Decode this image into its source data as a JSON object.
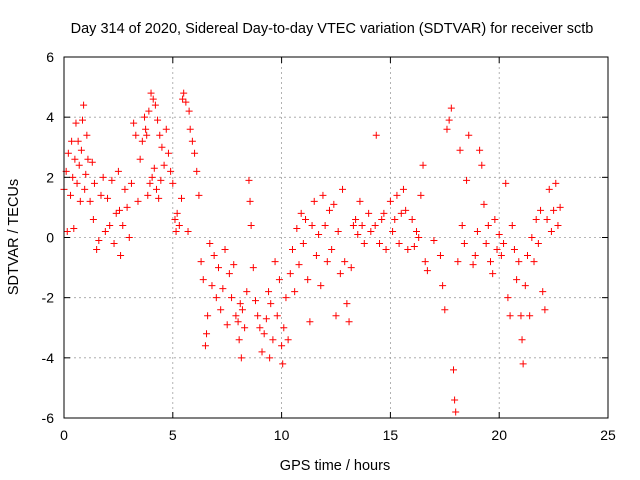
{
  "chart_data": {
    "type": "scatter",
    "title": "Day 314 of 2020, Sidereal Day-to-day VTEC variation (SDTVAR) for receiver sctb",
    "xlabel": "GPS time / hours",
    "ylabel": "SDTVAR / TECUs",
    "xlim": [
      0,
      25
    ],
    "ylim": [
      -6,
      6
    ],
    "xticks": [
      0,
      5,
      10,
      15,
      20,
      25
    ],
    "yticks": [
      -6,
      -4,
      -2,
      0,
      2,
      4,
      6
    ],
    "grid": true,
    "marker": "+",
    "color": "#ff0000",
    "series": [
      {
        "name": "SDTVAR",
        "points": [
          [
            0.0,
            1.6
          ],
          [
            0.1,
            2.2
          ],
          [
            0.15,
            0.2
          ],
          [
            0.2,
            2.8
          ],
          [
            0.3,
            1.4
          ],
          [
            0.35,
            3.2
          ],
          [
            0.4,
            2.0
          ],
          [
            0.45,
            0.3
          ],
          [
            0.5,
            2.6
          ],
          [
            0.55,
            3.8
          ],
          [
            0.6,
            1.8
          ],
          [
            0.65,
            3.2
          ],
          [
            0.7,
            2.4
          ],
          [
            0.75,
            1.2
          ],
          [
            0.8,
            2.9
          ],
          [
            0.85,
            3.9
          ],
          [
            0.9,
            4.4
          ],
          [
            0.95,
            1.6
          ],
          [
            1.0,
            2.1
          ],
          [
            1.05,
            3.4
          ],
          [
            1.1,
            2.6
          ],
          [
            1.2,
            1.2
          ],
          [
            1.3,
            2.5
          ],
          [
            1.35,
            0.6
          ],
          [
            1.4,
            1.8
          ],
          [
            1.5,
            -0.4
          ],
          [
            1.6,
            -0.1
          ],
          [
            1.7,
            1.4
          ],
          [
            1.8,
            2.0
          ],
          [
            1.9,
            0.2
          ],
          [
            2.0,
            1.3
          ],
          [
            2.1,
            0.4
          ],
          [
            2.2,
            1.9
          ],
          [
            2.3,
            -0.2
          ],
          [
            2.4,
            0.8
          ],
          [
            2.5,
            2.2
          ],
          [
            2.55,
            0.9
          ],
          [
            2.6,
            -0.6
          ],
          [
            2.7,
            0.4
          ],
          [
            2.8,
            1.6
          ],
          [
            2.9,
            1.0
          ],
          [
            3.0,
            0.0
          ],
          [
            3.1,
            1.8
          ],
          [
            3.2,
            3.8
          ],
          [
            3.3,
            3.4
          ],
          [
            3.4,
            1.2
          ],
          [
            3.5,
            2.6
          ],
          [
            3.6,
            3.2
          ],
          [
            3.7,
            4.0
          ],
          [
            3.75,
            3.6
          ],
          [
            3.8,
            3.4
          ],
          [
            3.85,
            1.4
          ],
          [
            3.9,
            4.2
          ],
          [
            3.95,
            1.8
          ],
          [
            4.0,
            4.8
          ],
          [
            4.05,
            2.0
          ],
          [
            4.1,
            4.6
          ],
          [
            4.15,
            2.3
          ],
          [
            4.2,
            4.4
          ],
          [
            4.25,
            1.6
          ],
          [
            4.3,
            3.9
          ],
          [
            4.35,
            1.3
          ],
          [
            4.4,
            3.4
          ],
          [
            4.45,
            1.9
          ],
          [
            4.5,
            3.0
          ],
          [
            4.6,
            2.4
          ],
          [
            4.7,
            3.6
          ],
          [
            4.8,
            2.8
          ],
          [
            4.9,
            2.2
          ],
          [
            5.0,
            1.8
          ],
          [
            5.1,
            0.6
          ],
          [
            5.15,
            0.2
          ],
          [
            5.2,
            0.8
          ],
          [
            5.3,
            0.4
          ],
          [
            5.4,
            1.3
          ],
          [
            5.45,
            4.6
          ],
          [
            5.5,
            4.8
          ],
          [
            5.6,
            4.5
          ],
          [
            5.7,
            0.2
          ],
          [
            5.75,
            4.2
          ],
          [
            5.8,
            3.6
          ],
          [
            5.9,
            3.2
          ],
          [
            6.0,
            2.8
          ],
          [
            6.1,
            2.2
          ],
          [
            6.2,
            1.4
          ],
          [
            6.3,
            -0.8
          ],
          [
            6.4,
            -1.4
          ],
          [
            6.5,
            -3.6
          ],
          [
            6.55,
            -3.2
          ],
          [
            6.6,
            -2.6
          ],
          [
            6.7,
            -0.2
          ],
          [
            6.8,
            -1.6
          ],
          [
            6.9,
            -0.6
          ],
          [
            7.0,
            -2.0
          ],
          [
            7.1,
            -1.0
          ],
          [
            7.2,
            -2.4
          ],
          [
            7.3,
            -1.7
          ],
          [
            7.4,
            -0.4
          ],
          [
            7.5,
            -2.9
          ],
          [
            7.6,
            -1.2
          ],
          [
            7.7,
            -2.0
          ],
          [
            7.8,
            -0.9
          ],
          [
            7.9,
            -2.6
          ],
          [
            8.0,
            -2.8
          ],
          [
            8.05,
            -3.4
          ],
          [
            8.1,
            -2.2
          ],
          [
            8.15,
            -4.0
          ],
          [
            8.2,
            -2.4
          ],
          [
            8.3,
            -3.0
          ],
          [
            8.4,
            -1.8
          ],
          [
            8.5,
            1.9
          ],
          [
            8.55,
            1.2
          ],
          [
            8.6,
            0.4
          ],
          [
            8.7,
            -1.0
          ],
          [
            8.8,
            -2.1
          ],
          [
            8.9,
            -2.6
          ],
          [
            9.0,
            -3.0
          ],
          [
            9.1,
            -3.8
          ],
          [
            9.2,
            -3.2
          ],
          [
            9.3,
            -2.7
          ],
          [
            9.4,
            -1.8
          ],
          [
            9.45,
            -4.0
          ],
          [
            9.5,
            -2.2
          ],
          [
            9.6,
            -3.4
          ],
          [
            9.7,
            -0.8
          ],
          [
            9.8,
            -2.6
          ],
          [
            9.9,
            -1.4
          ],
          [
            10.0,
            -3.6
          ],
          [
            10.05,
            -4.2
          ],
          [
            10.1,
            -3.0
          ],
          [
            10.2,
            -2.0
          ],
          [
            10.3,
            -3.4
          ],
          [
            10.4,
            -1.2
          ],
          [
            10.5,
            -0.4
          ],
          [
            10.6,
            -1.8
          ],
          [
            10.7,
            0.3
          ],
          [
            10.8,
            -0.9
          ],
          [
            10.9,
            0.8
          ],
          [
            11.0,
            -0.2
          ],
          [
            11.1,
            0.6
          ],
          [
            11.2,
            -1.4
          ],
          [
            11.3,
            -2.8
          ],
          [
            11.4,
            0.4
          ],
          [
            11.5,
            1.2
          ],
          [
            11.6,
            -0.6
          ],
          [
            11.7,
            0.1
          ],
          [
            11.8,
            -1.6
          ],
          [
            11.9,
            1.4
          ],
          [
            12.0,
            0.4
          ],
          [
            12.1,
            -0.8
          ],
          [
            12.2,
            0.9
          ],
          [
            12.3,
            -0.4
          ],
          [
            12.4,
            1.1
          ],
          [
            12.5,
            -2.6
          ],
          [
            12.6,
            0.2
          ],
          [
            12.7,
            -1.2
          ],
          [
            12.8,
            1.6
          ],
          [
            12.9,
            -0.8
          ],
          [
            13.0,
            -2.2
          ],
          [
            13.1,
            -2.8
          ],
          [
            13.2,
            -1.0
          ],
          [
            13.3,
            0.4
          ],
          [
            13.4,
            0.6
          ],
          [
            13.5,
            0.1
          ],
          [
            13.6,
            1.2
          ],
          [
            13.7,
            0.4
          ],
          [
            13.8,
            -0.2
          ],
          [
            14.0,
            0.8
          ],
          [
            14.1,
            0.2
          ],
          [
            14.3,
            0.4
          ],
          [
            14.35,
            3.4
          ],
          [
            14.5,
            -0.2
          ],
          [
            14.6,
            0.6
          ],
          [
            14.7,
            0.8
          ],
          [
            14.8,
            -0.4
          ],
          [
            15.0,
            1.2
          ],
          [
            15.1,
            0.2
          ],
          [
            15.2,
            0.6
          ],
          [
            15.3,
            1.4
          ],
          [
            15.4,
            -0.2
          ],
          [
            15.5,
            0.8
          ],
          [
            15.6,
            1.6
          ],
          [
            15.7,
            0.9
          ],
          [
            15.8,
            -0.4
          ],
          [
            16.0,
            0.6
          ],
          [
            16.1,
            -0.3
          ],
          [
            16.2,
            0.2
          ],
          [
            16.3,
            0.0
          ],
          [
            16.4,
            1.4
          ],
          [
            16.5,
            2.4
          ],
          [
            16.6,
            -0.8
          ],
          [
            16.7,
            -1.1
          ],
          [
            17.0,
            -0.1
          ],
          [
            17.3,
            -0.6
          ],
          [
            17.4,
            -1.6
          ],
          [
            17.5,
            -2.4
          ],
          [
            17.6,
            3.6
          ],
          [
            17.7,
            3.9
          ],
          [
            17.8,
            4.3
          ],
          [
            17.9,
            -4.4
          ],
          [
            17.95,
            -5.4
          ],
          [
            18.0,
            -5.8
          ],
          [
            18.1,
            -0.8
          ],
          [
            18.2,
            2.9
          ],
          [
            18.3,
            0.4
          ],
          [
            18.4,
            -0.2
          ],
          [
            18.5,
            1.9
          ],
          [
            18.6,
            3.4
          ],
          [
            18.8,
            -0.9
          ],
          [
            18.9,
            -0.6
          ],
          [
            19.0,
            0.2
          ],
          [
            19.1,
            2.9
          ],
          [
            19.2,
            2.4
          ],
          [
            19.3,
            1.1
          ],
          [
            19.4,
            -0.2
          ],
          [
            19.5,
            0.4
          ],
          [
            19.6,
            -0.8
          ],
          [
            19.7,
            -1.2
          ],
          [
            19.8,
            0.6
          ],
          [
            19.9,
            -0.4
          ],
          [
            20.0,
            0.1
          ],
          [
            20.1,
            -0.6
          ],
          [
            20.2,
            -0.2
          ],
          [
            20.3,
            1.8
          ],
          [
            20.4,
            -2.0
          ],
          [
            20.5,
            -2.6
          ],
          [
            20.6,
            0.4
          ],
          [
            20.7,
            -0.4
          ],
          [
            20.8,
            -1.4
          ],
          [
            20.9,
            -0.8
          ],
          [
            21.0,
            -2.6
          ],
          [
            21.05,
            -3.4
          ],
          [
            21.1,
            -4.2
          ],
          [
            21.2,
            -1.6
          ],
          [
            21.3,
            -0.6
          ],
          [
            21.4,
            -2.6
          ],
          [
            21.5,
            0.0
          ],
          [
            21.6,
            -0.8
          ],
          [
            21.7,
            0.6
          ],
          [
            21.8,
            -0.2
          ],
          [
            21.9,
            0.9
          ],
          [
            22.0,
            -1.8
          ],
          [
            22.1,
            -2.4
          ],
          [
            22.2,
            0.6
          ],
          [
            22.3,
            1.6
          ],
          [
            22.4,
            0.2
          ],
          [
            22.5,
            0.9
          ],
          [
            22.6,
            1.8
          ],
          [
            22.7,
            0.4
          ],
          [
            22.8,
            1.0
          ]
        ]
      }
    ]
  }
}
